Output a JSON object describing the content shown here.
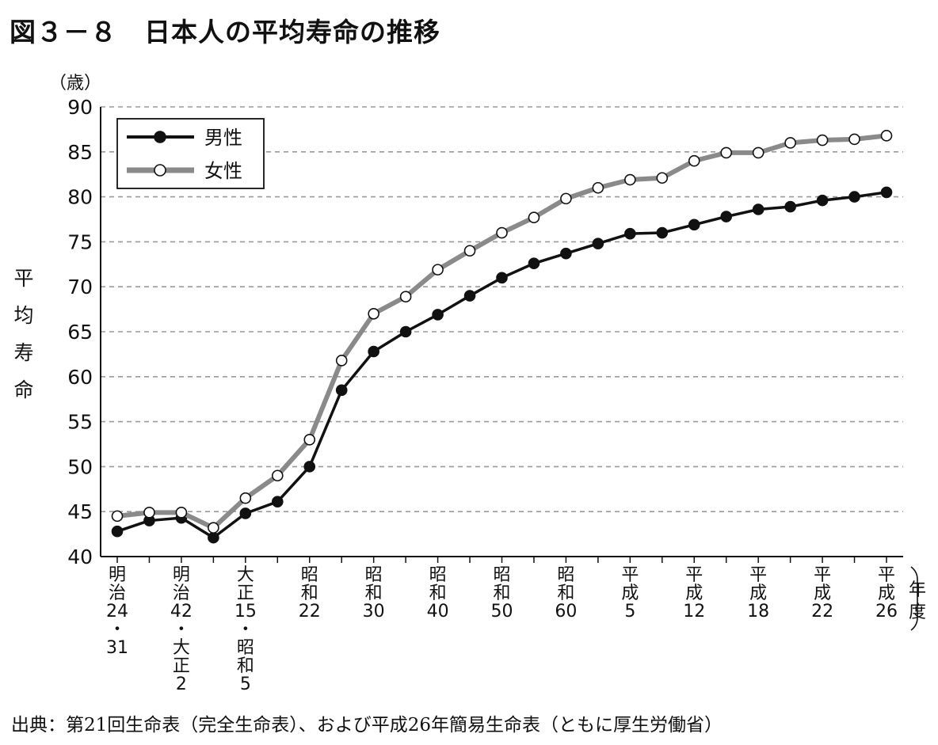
{
  "title": "図３－８　日本人の平均寿命の推移",
  "source": "出典：第21回生命表（完全生命表）、および平成26年簡易生命表（ともに厚生労働省）",
  "chart_data": {
    "type": "line",
    "title": "図３－８　日本人の平均寿命の推移",
    "ylabel": "平均寿命",
    "yunit": "（歳）",
    "xunit": "（年度）",
    "ylim": [
      40,
      90
    ],
    "yticks": [
      40,
      45,
      50,
      55,
      60,
      65,
      70,
      75,
      80,
      85,
      90
    ],
    "grid": "horizontal-dashed",
    "legend_position": "top-left",
    "categories": [
      "明治24・31",
      "",
      "明治42・大正2",
      "",
      "大正15・昭和5",
      "",
      "昭和22",
      "",
      "昭和30",
      "",
      "昭和40",
      "",
      "昭和50",
      "",
      "昭和60",
      "",
      "平成5",
      "",
      "平成12",
      "",
      "平成18",
      "",
      "平成22",
      "",
      "平成26"
    ],
    "category_labels": [
      {
        "index": 0,
        "lines": [
          "明",
          "治",
          "24",
          "・",
          "31"
        ]
      },
      {
        "index": 2,
        "lines": [
          "明",
          "治",
          "42",
          "・",
          "大",
          "正",
          "2"
        ]
      },
      {
        "index": 4,
        "lines": [
          "大",
          "正",
          "15",
          "・",
          "昭",
          "和",
          "5"
        ]
      },
      {
        "index": 6,
        "lines": [
          "昭",
          "和",
          "22"
        ]
      },
      {
        "index": 8,
        "lines": [
          "昭",
          "和",
          "30"
        ]
      },
      {
        "index": 10,
        "lines": [
          "昭",
          "和",
          "40"
        ]
      },
      {
        "index": 12,
        "lines": [
          "昭",
          "和",
          "50"
        ]
      },
      {
        "index": 14,
        "lines": [
          "昭",
          "和",
          "60"
        ]
      },
      {
        "index": 16,
        "lines": [
          "平",
          "成",
          "5"
        ]
      },
      {
        "index": 18,
        "lines": [
          "平",
          "成",
          "12"
        ]
      },
      {
        "index": 20,
        "lines": [
          "平",
          "成",
          "18"
        ]
      },
      {
        "index": 22,
        "lines": [
          "平",
          "成",
          "22"
        ]
      },
      {
        "index": 24,
        "lines": [
          "平",
          "成",
          "26"
        ]
      }
    ],
    "series": [
      {
        "name": "男性",
        "color": "#111111",
        "marker_fill": "#111111",
        "values": [
          42.8,
          44.0,
          44.3,
          42.1,
          44.8,
          46.1,
          50.0,
          58.5,
          62.8,
          65.0,
          66.9,
          69.0,
          71.0,
          72.6,
          73.7,
          74.8,
          75.9,
          76.0,
          76.9,
          77.8,
          78.6,
          78.9,
          79.6,
          80.0,
          80.5
        ]
      },
      {
        "name": "女性",
        "color": "#8a8a8a",
        "marker_fill": "#ffffff",
        "values": [
          44.5,
          44.9,
          44.9,
          43.2,
          46.5,
          49.0,
          53.0,
          61.8,
          67.0,
          68.9,
          71.9,
          74.0,
          76.0,
          77.7,
          79.8,
          81.0,
          81.9,
          82.1,
          84.0,
          84.9,
          84.9,
          86.0,
          86.3,
          86.4,
          86.8
        ]
      }
    ]
  }
}
